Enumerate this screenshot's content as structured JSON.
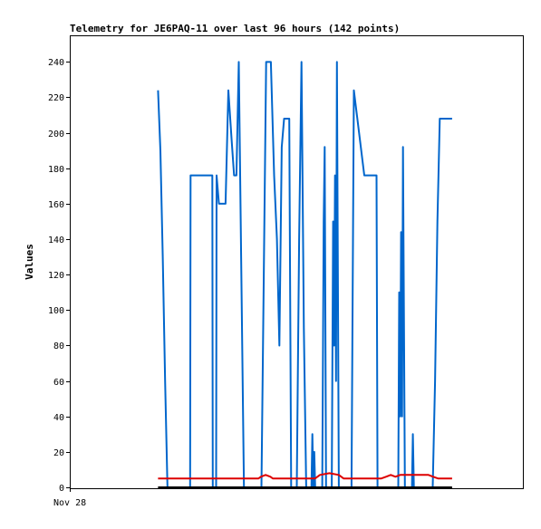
{
  "chart_data": {
    "type": "line",
    "title": "Telemetry for JE6PAQ-11 over last 96 hours (142 points)",
    "xlabel": "",
    "ylabel": "Values",
    "x_tick_labels": [
      "Nov 28"
    ],
    "y_ticks": [
      0,
      20,
      40,
      60,
      80,
      100,
      120,
      140,
      160,
      180,
      200,
      220,
      240
    ],
    "ylim": [
      -0.5,
      255
    ],
    "xlim": [
      0,
      96
    ],
    "grid": false,
    "legend": "none",
    "series": [
      {
        "color": "#0066cc",
        "points": [
          [
            18.7,
            224
          ],
          [
            19.2,
            190
          ],
          [
            19.7,
            130
          ],
          [
            20.2,
            60
          ],
          [
            20.7,
            0
          ],
          [
            25.5,
            0
          ],
          [
            25.6,
            176
          ],
          [
            30.2,
            176
          ],
          [
            30.3,
            0
          ],
          [
            31.0,
            0
          ],
          [
            31.1,
            176
          ],
          [
            31.6,
            160
          ],
          [
            33.0,
            160
          ],
          [
            33.6,
            224
          ],
          [
            34.3,
            196
          ],
          [
            34.8,
            176
          ],
          [
            35.3,
            176
          ],
          [
            35.8,
            240
          ],
          [
            36.3,
            130
          ],
          [
            36.9,
            0
          ],
          [
            40.6,
            0
          ],
          [
            41.1,
            120
          ],
          [
            41.6,
            240
          ],
          [
            42.6,
            240
          ],
          [
            43.3,
            176
          ],
          [
            43.9,
            140
          ],
          [
            44.4,
            80
          ],
          [
            44.9,
            192
          ],
          [
            45.4,
            208
          ],
          [
            46.5,
            208
          ],
          [
            46.9,
            0
          ],
          [
            48.1,
            0
          ],
          [
            48.6,
            140
          ],
          [
            49.1,
            240
          ],
          [
            49.6,
            90
          ],
          [
            50.1,
            0
          ],
          [
            51.2,
            0
          ],
          [
            51.4,
            30
          ],
          [
            51.6,
            0
          ],
          [
            51.8,
            20
          ],
          [
            52.0,
            0
          ],
          [
            53.5,
            0
          ],
          [
            53.8,
            150
          ],
          [
            54.0,
            192
          ],
          [
            54.3,
            0
          ],
          [
            55.5,
            0
          ],
          [
            55.8,
            150
          ],
          [
            56.0,
            80
          ],
          [
            56.2,
            176
          ],
          [
            56.4,
            60
          ],
          [
            56.6,
            240
          ],
          [
            57.0,
            0
          ],
          [
            59.7,
            0
          ],
          [
            60.2,
            224
          ],
          [
            62.4,
            176
          ],
          [
            65.0,
            176
          ],
          [
            65.2,
            0
          ],
          [
            69.6,
            0
          ],
          [
            69.8,
            110
          ],
          [
            70.0,
            40
          ],
          [
            70.2,
            144
          ],
          [
            70.4,
            40
          ],
          [
            70.6,
            192
          ],
          [
            71.0,
            0
          ],
          [
            72.5,
            0
          ],
          [
            72.7,
            30
          ],
          [
            72.9,
            0
          ],
          [
            76.9,
            0
          ],
          [
            77.4,
            60
          ],
          [
            77.9,
            150
          ],
          [
            78.4,
            208
          ],
          [
            81.0,
            208
          ]
        ]
      },
      {
        "color": "#dd0000",
        "points": [
          [
            18.7,
            5
          ],
          [
            40.0,
            5
          ],
          [
            40.5,
            6
          ],
          [
            41.5,
            7
          ],
          [
            42.5,
            6
          ],
          [
            43.0,
            5
          ],
          [
            52.0,
            5
          ],
          [
            53.0,
            7
          ],
          [
            55.0,
            8
          ],
          [
            57.0,
            7
          ],
          [
            58.0,
            5
          ],
          [
            66.0,
            5
          ],
          [
            67.0,
            6
          ],
          [
            68.0,
            7
          ],
          [
            69.0,
            6
          ],
          [
            70.0,
            7
          ],
          [
            76.0,
            7
          ],
          [
            77.0,
            6
          ],
          [
            78.0,
            5
          ],
          [
            81.0,
            5
          ]
        ]
      }
    ]
  }
}
